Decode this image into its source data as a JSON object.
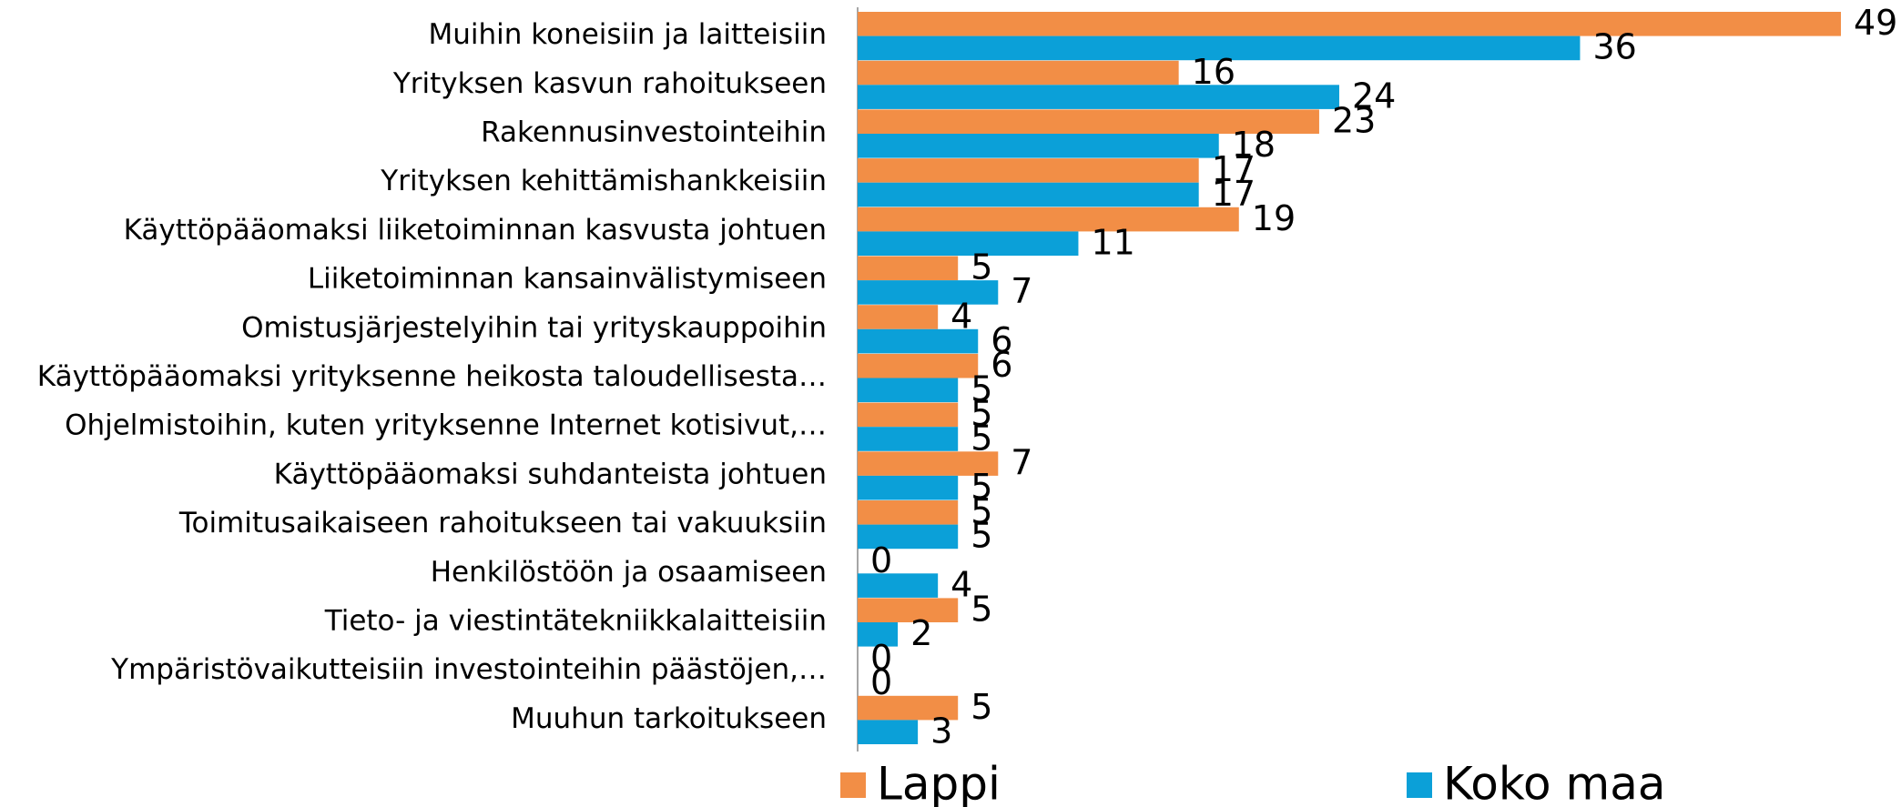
{
  "chart_data": {
    "type": "bar",
    "orientation": "horizontal",
    "categories": [
      "Muihin koneisiin ja laitteisiin",
      "Yrityksen kasvun rahoitukseen",
      "Rakennusinvestointeihin",
      "Yrityksen kehittämishankkeisiin",
      "Käyttöpääomaksi liiketoiminnan kasvusta johtuen",
      "Liiketoiminnan kansainvälistymiseen",
      "Omistusjärjestelyihin tai yrityskauppoihin",
      "Käyttöpääomaksi yrityksenne heikosta taloudellisesta…",
      "Ohjelmistoihin, kuten yrityksenne Internet kotisivut,…",
      "Käyttöpääomaksi suhdanteista johtuen",
      "Toimitusaikaiseen rahoitukseen tai vakuuksiin",
      "Henkilöstöön ja osaamiseen",
      "Tieto- ja viestintätekniikkalaitteisiin",
      "Ympäristövaikutteisiin investointeihin päästöjen,…",
      "Muuhun tarkoitukseen"
    ],
    "series": [
      {
        "name": "Lappi",
        "color": "#f28e46",
        "values": [
          49,
          16,
          23,
          17,
          19,
          5,
          4,
          6,
          5,
          7,
          5,
          0,
          5,
          0,
          5
        ]
      },
      {
        "name": "Koko maa",
        "color": "#0ba0d8",
        "values": [
          36,
          24,
          18,
          17,
          11,
          7,
          6,
          5,
          5,
          5,
          5,
          4,
          2,
          0,
          3
        ]
      }
    ]
  }
}
